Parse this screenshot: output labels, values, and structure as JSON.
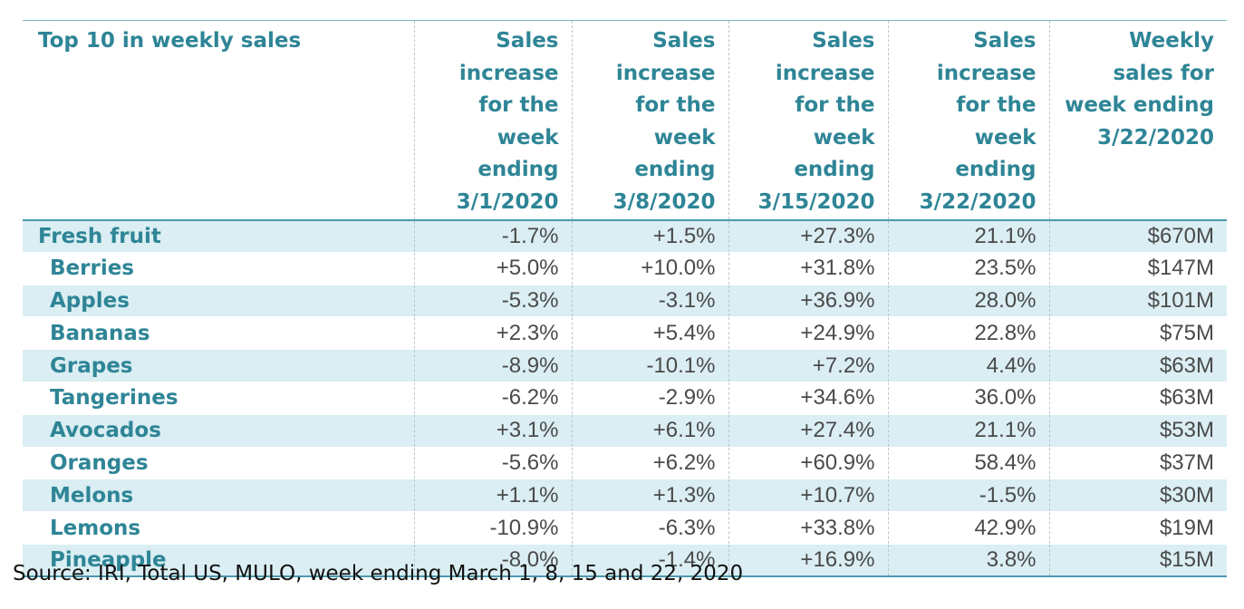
{
  "table": {
    "headers": [
      "Top 10 in weekly sales",
      "Sales increase for the week ending 3/1/2020",
      "Sales increase for the week ending 3/8/2020",
      "Sales increase for the week ending 3/15/2020",
      "Sales increase for the week ending 3/22/2020",
      "Weekly sales for week ending 3/22/2020"
    ],
    "rows": [
      {
        "name": "Fresh fruit",
        "level": "top",
        "values": [
          "-1.7%",
          "+1.5%",
          "+27.3%",
          "21.1%",
          "$670M"
        ]
      },
      {
        "name": "Berries",
        "level": "sub",
        "values": [
          "+5.0%",
          "+10.0%",
          "+31.8%",
          "23.5%",
          "$147M"
        ]
      },
      {
        "name": "Apples",
        "level": "sub",
        "values": [
          "-5.3%",
          "-3.1%",
          "+36.9%",
          "28.0%",
          "$101M"
        ]
      },
      {
        "name": "Bananas",
        "level": "sub",
        "values": [
          "+2.3%",
          "+5.4%",
          "+24.9%",
          "22.8%",
          "$75M"
        ]
      },
      {
        "name": "Grapes",
        "level": "sub",
        "values": [
          "-8.9%",
          "-10.1%",
          "+7.2%",
          "4.4%",
          "$63M"
        ]
      },
      {
        "name": "Tangerines",
        "level": "sub",
        "values": [
          "-6.2%",
          "-2.9%",
          "+34.6%",
          "36.0%",
          "$63M"
        ]
      },
      {
        "name": "Avocados",
        "level": "sub",
        "values": [
          "+3.1%",
          "+6.1%",
          "+27.4%",
          "21.1%",
          "$53M"
        ]
      },
      {
        "name": "Oranges",
        "level": "sub",
        "values": [
          "-5.6%",
          "+6.2%",
          "+60.9%",
          "58.4%",
          "$37M"
        ]
      },
      {
        "name": "Melons",
        "level": "sub",
        "values": [
          "+1.1%",
          "+1.3%",
          "+10.7%",
          "-1.5%",
          "$30M"
        ]
      },
      {
        "name": "Lemons",
        "level": "sub",
        "values": [
          "-10.9%",
          "-6.3%",
          "+33.8%",
          "42.9%",
          "$19M"
        ]
      },
      {
        "name": "Pineapple",
        "level": "sub",
        "values": [
          "-8.0%",
          "-1.4%",
          "+16.9%",
          "3.8%",
          "$15M"
        ]
      }
    ]
  },
  "source": "Source: IRI, Total US, MULO, week ending March 1, 8, 15 and 22, 2020",
  "colors": {
    "header_text": "#2e8596",
    "row_shade": "#daeef3",
    "rule": "#4a9aae"
  }
}
